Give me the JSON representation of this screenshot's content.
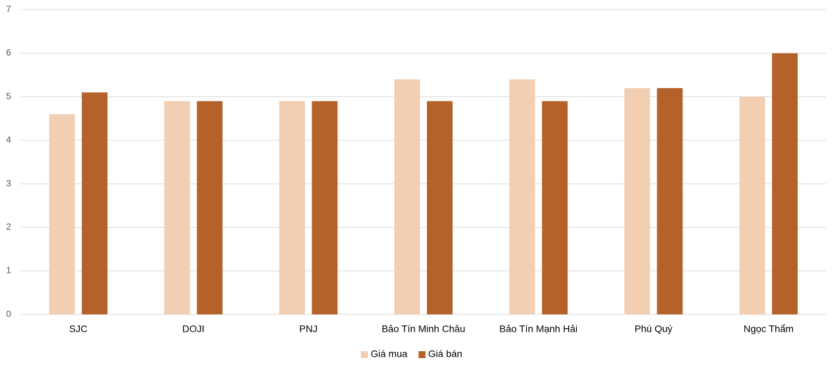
{
  "chart_data": {
    "type": "bar",
    "categories": [
      "SJC",
      "DOJI",
      "PNJ",
      "Bảo Tín Minh Châu",
      "Bảo Tín Mạnh Hải",
      "Phú Quý",
      "Ngọc Thẩm"
    ],
    "series": [
      {
        "name": "Giá mua",
        "color": "#f2cfb3",
        "values": [
          4.6,
          4.9,
          4.9,
          5.4,
          5.4,
          5.2,
          5.0
        ]
      },
      {
        "name": "Giá bán",
        "color": "#b5622a",
        "values": [
          5.1,
          4.9,
          4.9,
          4.9,
          4.9,
          5.2,
          6.0
        ]
      }
    ],
    "ylim": [
      0,
      7
    ],
    "yticks": [
      0,
      1,
      2,
      3,
      4,
      5,
      6,
      7
    ],
    "grid": true,
    "legend": "bottom"
  }
}
